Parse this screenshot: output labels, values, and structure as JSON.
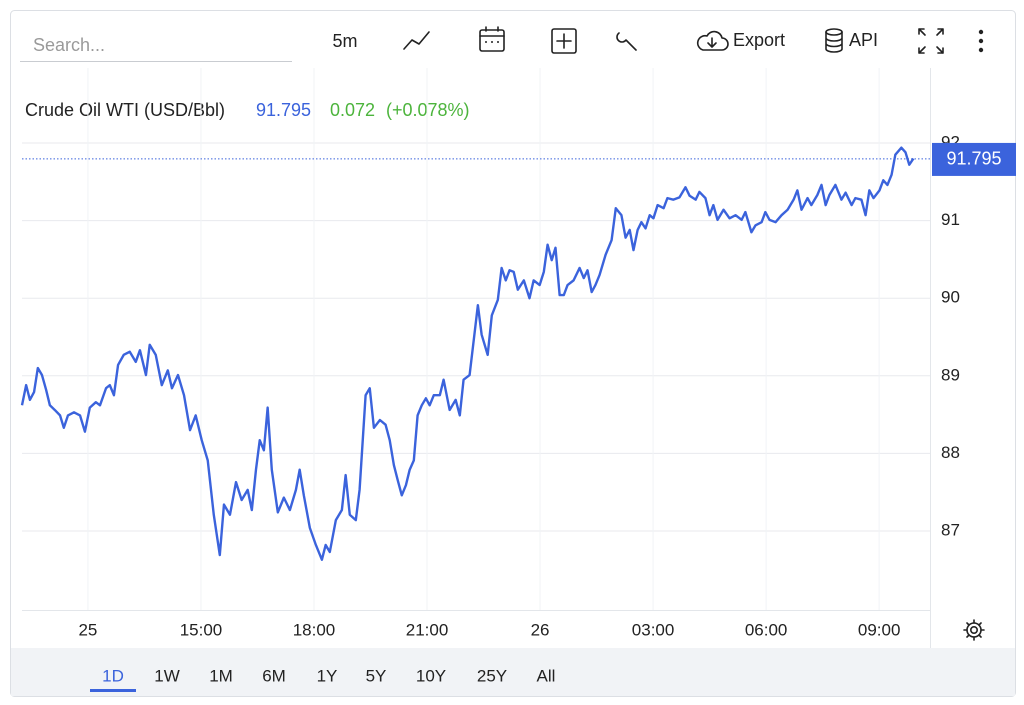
{
  "toolbar": {
    "search_placeholder": "Search...",
    "interval": "5m",
    "export": "Export",
    "api": "API"
  },
  "header": {
    "symbol": "Crude Oil WTI (USD/Bbl)",
    "change": 0.072,
    "change_pct": "(+0.078%)"
  },
  "chart_data": {
    "type": "line",
    "color": "#3b63dc",
    "last": 91.795,
    "grid": true,
    "x": [
      10.25,
      10.36,
      10.46,
      10.57,
      10.67,
      10.78,
      10.89,
      10.99,
      11.12,
      11.26,
      11.36,
      11.47,
      11.63,
      11.79,
      11.92,
      12.05,
      12.21,
      12.32,
      12.48,
      12.58,
      12.69,
      12.8,
      12.95,
      13.11,
      13.27,
      13.38,
      13.54,
      13.64,
      13.8,
      13.96,
      14.12,
      14.23,
      14.39,
      14.55,
      14.71,
      14.86,
      15.02,
      15.18,
      15.34,
      15.5,
      15.61,
      15.77,
      15.93,
      16.08,
      16.24,
      16.35,
      16.46,
      16.56,
      16.67,
      16.77,
      16.88,
      17.04,
      17.2,
      17.36,
      17.52,
      17.62,
      17.73,
      17.89,
      18.05,
      18.21,
      18.31,
      18.42,
      18.58,
      18.74,
      18.84,
      18.95,
      19.11,
      19.21,
      19.37,
      19.48,
      19.59,
      19.75,
      19.9,
      20.01,
      20.12,
      20.22,
      20.33,
      20.44,
      20.54,
      20.65,
      20.75,
      20.86,
      20.97,
      21.07,
      21.18,
      21.34,
      21.44,
      21.6,
      21.76,
      21.87,
      21.97,
      22.13,
      22.24,
      22.35,
      22.45,
      22.61,
      22.72,
      22.88,
      22.98,
      23.09,
      23.19,
      23.3,
      23.41,
      23.57,
      23.72,
      23.83,
      23.99,
      24.1,
      24.2,
      24.31,
      24.41,
      24.52,
      24.63,
      24.73,
      24.89,
      25.05,
      25.16,
      25.26,
      25.37,
      25.47,
      25.58,
      25.74,
      25.9,
      26.01,
      26.16,
      26.27,
      26.38,
      26.48,
      26.59,
      26.69,
      26.8,
      26.91,
      27.01,
      27.12,
      27.28,
      27.38,
      27.54,
      27.7,
      27.86,
      27.97,
      28.13,
      28.23,
      28.39,
      28.5,
      28.6,
      28.71,
      28.87,
      29.03,
      29.19,
      29.35,
      29.45,
      29.61,
      29.72,
      29.88,
      29.98,
      30.09,
      30.25,
      30.41,
      30.57,
      30.73,
      30.83,
      30.94,
      31.1,
      31.2,
      31.36,
      31.47,
      31.58,
      31.68,
      31.84,
      32.0,
      32.11,
      32.27,
      32.37,
      32.53,
      32.64,
      32.74,
      32.85,
      33.01,
      33.11,
      33.22,
      33.33,
      33.43,
      33.59,
      33.7,
      33.8,
      33.91
    ],
    "values": [
      88.62,
      88.88,
      88.69,
      88.79,
      89.1,
      89.01,
      88.82,
      88.62,
      88.56,
      88.49,
      88.33,
      88.49,
      88.53,
      88.49,
      88.28,
      88.59,
      88.66,
      88.62,
      88.84,
      88.88,
      88.75,
      89.14,
      89.27,
      89.31,
      89.18,
      89.33,
      89.01,
      89.4,
      89.27,
      88.88,
      89.07,
      88.84,
      89.01,
      88.75,
      88.3,
      88.49,
      88.17,
      87.91,
      87.21,
      86.69,
      87.34,
      87.21,
      87.63,
      87.4,
      87.53,
      87.27,
      87.79,
      88.17,
      88.04,
      88.59,
      87.79,
      87.24,
      87.43,
      87.27,
      87.53,
      87.79,
      87.46,
      87.04,
      86.82,
      86.63,
      86.82,
      86.73,
      87.14,
      87.27,
      87.72,
      87.21,
      87.14,
      87.53,
      88.75,
      88.84,
      88.33,
      88.43,
      88.37,
      88.17,
      87.85,
      87.66,
      87.46,
      87.59,
      87.79,
      87.91,
      88.49,
      88.62,
      88.71,
      88.62,
      88.75,
      88.75,
      88.95,
      88.56,
      88.69,
      88.49,
      88.95,
      89.01,
      89.46,
      89.91,
      89.53,
      89.27,
      89.78,
      89.98,
      90.39,
      90.23,
      90.36,
      90.34,
      90.11,
      90.23,
      90.0,
      90.23,
      90.17,
      90.34,
      90.69,
      90.49,
      90.65,
      90.04,
      90.04,
      90.17,
      90.23,
      90.39,
      90.26,
      90.36,
      90.08,
      90.17,
      90.3,
      90.56,
      90.75,
      91.16,
      91.07,
      90.78,
      90.88,
      90.62,
      90.88,
      90.98,
      90.9,
      91.07,
      91.03,
      91.2,
      91.16,
      91.29,
      91.27,
      91.3,
      91.43,
      91.32,
      91.27,
      91.37,
      91.29,
      91.07,
      91.2,
      91.01,
      91.14,
      91.03,
      91.07,
      91.01,
      91.11,
      90.85,
      90.94,
      90.98,
      91.11,
      91.01,
      90.98,
      91.07,
      91.14,
      91.27,
      91.39,
      91.14,
      91.29,
      91.2,
      91.33,
      91.46,
      91.2,
      91.33,
      91.46,
      91.27,
      91.36,
      91.2,
      91.29,
      91.27,
      91.07,
      91.39,
      91.29,
      91.39,
      91.52,
      91.46,
      91.59,
      91.85,
      91.94,
      91.88,
      91.72,
      91.8
    ],
    "xlim": [
      10.25,
      34.35
    ],
    "ylim": [
      86,
      92.2
    ],
    "xticks": [
      {
        "value": 12,
        "label": "25"
      },
      {
        "value": 15,
        "label": "15:00"
      },
      {
        "value": 18,
        "label": "18:00"
      },
      {
        "value": 21,
        "label": "21:00"
      },
      {
        "value": 24,
        "label": "26"
      },
      {
        "value": 27,
        "label": "03:00"
      },
      {
        "value": 30,
        "label": "06:00"
      },
      {
        "value": 33,
        "label": "09:00"
      }
    ],
    "yticks": [
      87,
      88,
      89,
      90,
      91,
      92
    ]
  },
  "range_buttons": [
    "1D",
    "1W",
    "1M",
    "6M",
    "1Y",
    "5Y",
    "10Y",
    "25Y",
    "All"
  ],
  "selected_range": "1D"
}
